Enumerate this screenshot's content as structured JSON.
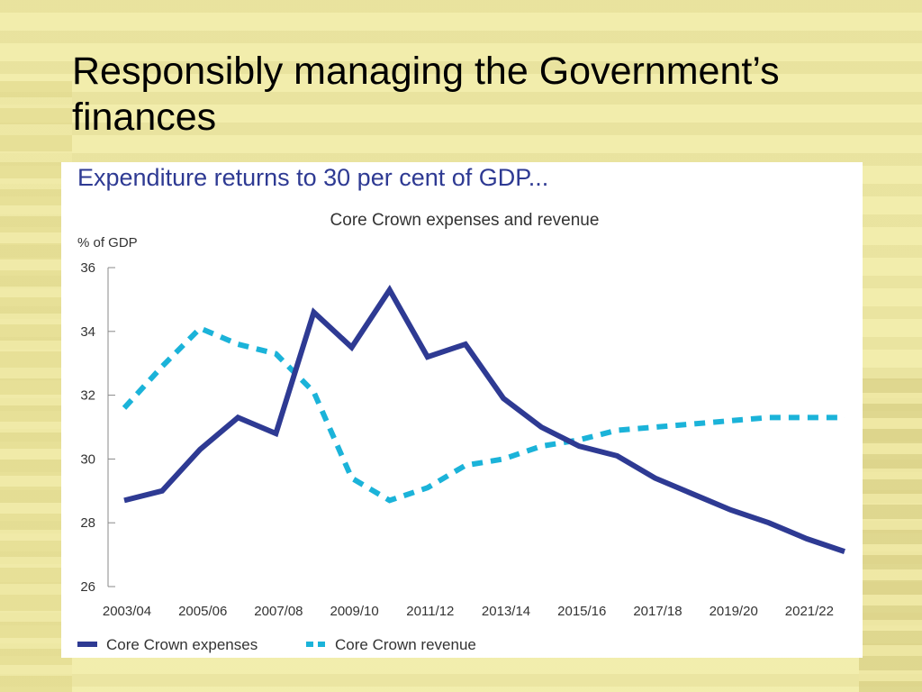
{
  "slide": {
    "title": "Responsibly managing the Government’s finances"
  },
  "chart_heading": "Expenditure returns to 30 per cent of GDP...",
  "colors": {
    "expenses": "#2e3a93",
    "revenue": "#1bb3d9",
    "heading": "#2e3a93"
  },
  "chart_data": {
    "type": "line",
    "title": "Core Crown expenses and revenue",
    "ylabel": "% of GDP",
    "xlabel": "",
    "ylim": [
      26,
      36
    ],
    "yticks": [
      26,
      28,
      30,
      32,
      34,
      36
    ],
    "x": [
      "2003/04",
      "2004/05",
      "2005/06",
      "2006/07",
      "2007/08",
      "2008/09",
      "2009/10",
      "2010/11",
      "2011/12",
      "2012/13",
      "2013/14",
      "2014/15",
      "2015/16",
      "2016/17",
      "2017/18",
      "2018/19",
      "2019/20",
      "2020/21",
      "2021/22",
      "2022/23"
    ],
    "xtick_labels": [
      "2003/04",
      "2005/06",
      "2007/08",
      "2009/10",
      "2011/12",
      "2013/14",
      "2015/16",
      "2017/18",
      "2019/20",
      "2021/22"
    ],
    "series": [
      {
        "name": "Core Crown expenses",
        "style": "solid",
        "values": [
          28.7,
          29.0,
          30.3,
          31.3,
          30.8,
          34.6,
          33.5,
          35.3,
          33.2,
          33.6,
          31.9,
          31.0,
          30.4,
          30.1,
          29.4,
          28.9,
          28.4,
          28.0,
          27.5,
          27.1
        ]
      },
      {
        "name": "Core Crown revenue",
        "style": "dashed",
        "values": [
          31.6,
          32.9,
          34.1,
          33.6,
          33.3,
          32.1,
          29.4,
          28.7,
          29.1,
          29.8,
          30.0,
          30.4,
          30.6,
          30.9,
          31.0,
          31.1,
          31.2,
          31.3,
          31.3,
          31.3
        ]
      }
    ],
    "legend_position": "bottom-left",
    "grid": false
  }
}
